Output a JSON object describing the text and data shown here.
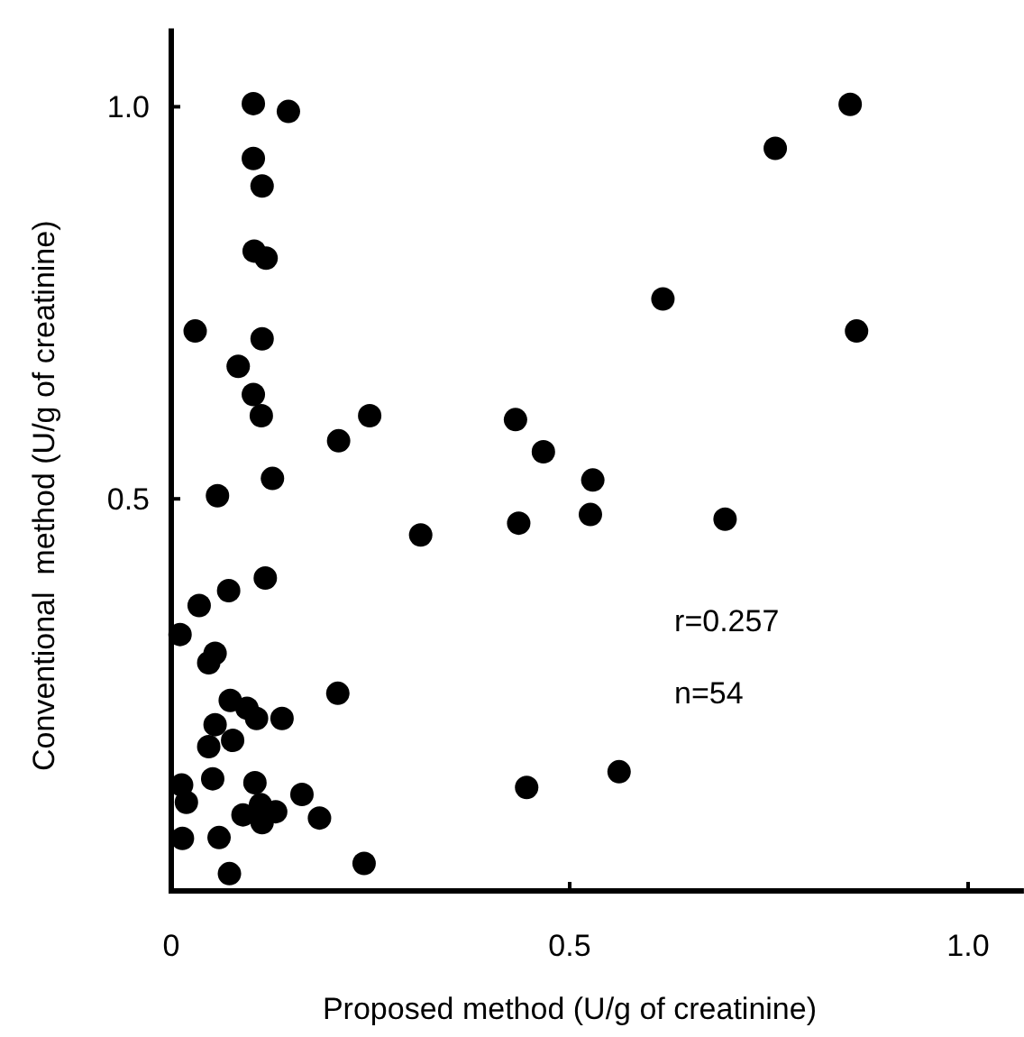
{
  "chart_data": {
    "type": "scatter",
    "xlabel": "Proposed method (U/g of creatinine)",
    "ylabel": "Conventional  method (U/g of creatinine)",
    "xlim": [
      0,
      1.07
    ],
    "ylim": [
      0,
      1.1
    ],
    "xticks": [
      0,
      {
        "value": 0.5,
        "label": "0.5"
      },
      {
        "value": 1,
        "label": "1.0"
      }
    ],
    "yticks": [
      {
        "value": 0.5,
        "label": "0.5"
      },
      {
        "value": 1,
        "label": "1.0"
      }
    ],
    "marker": "circle",
    "grid": false,
    "annotations": [
      "r=0.257",
      "n=54"
    ],
    "series": [
      {
        "color": "#000000",
        "x": [
          0.103,
          0.147,
          0.103,
          0.114,
          0.104,
          0.119,
          0.03,
          0.114,
          0.084,
          0.103,
          0.113,
          0.249,
          0.21,
          0.432,
          0.127,
          0.058,
          0.313,
          0.436,
          0.852,
          0.758,
          0.617,
          0.86,
          0.467,
          0.529,
          0.526,
          0.695,
          0.562,
          0.446,
          0.118,
          0.072,
          0.035,
          0.011,
          0.055,
          0.047,
          0.209,
          0.074,
          0.095,
          0.107,
          0.139,
          0.055,
          0.047,
          0.077,
          0.013,
          0.052,
          0.105,
          0.019,
          0.112,
          0.09,
          0.131,
          0.164,
          0.114,
          0.186,
          0.014,
          0.06,
          0.073,
          0.242
        ],
        "values": [
          1.004,
          0.994,
          0.934,
          0.899,
          0.816,
          0.807,
          0.714,
          0.704,
          0.669,
          0.633,
          0.606,
          0.606,
          0.574,
          0.601,
          0.526,
          0.504,
          0.454,
          0.469,
          1.003,
          0.947,
          0.755,
          0.714,
          0.56,
          0.524,
          0.48,
          0.474,
          0.152,
          0.132,
          0.399,
          0.383,
          0.364,
          0.327,
          0.303,
          0.291,
          0.252,
          0.243,
          0.233,
          0.22,
          0.22,
          0.212,
          0.184,
          0.192,
          0.135,
          0.143,
          0.138,
          0.113,
          0.11,
          0.097,
          0.101,
          0.123,
          0.087,
          0.093,
          0.067,
          0.068,
          0.022,
          0.035
        ]
      }
    ]
  }
}
